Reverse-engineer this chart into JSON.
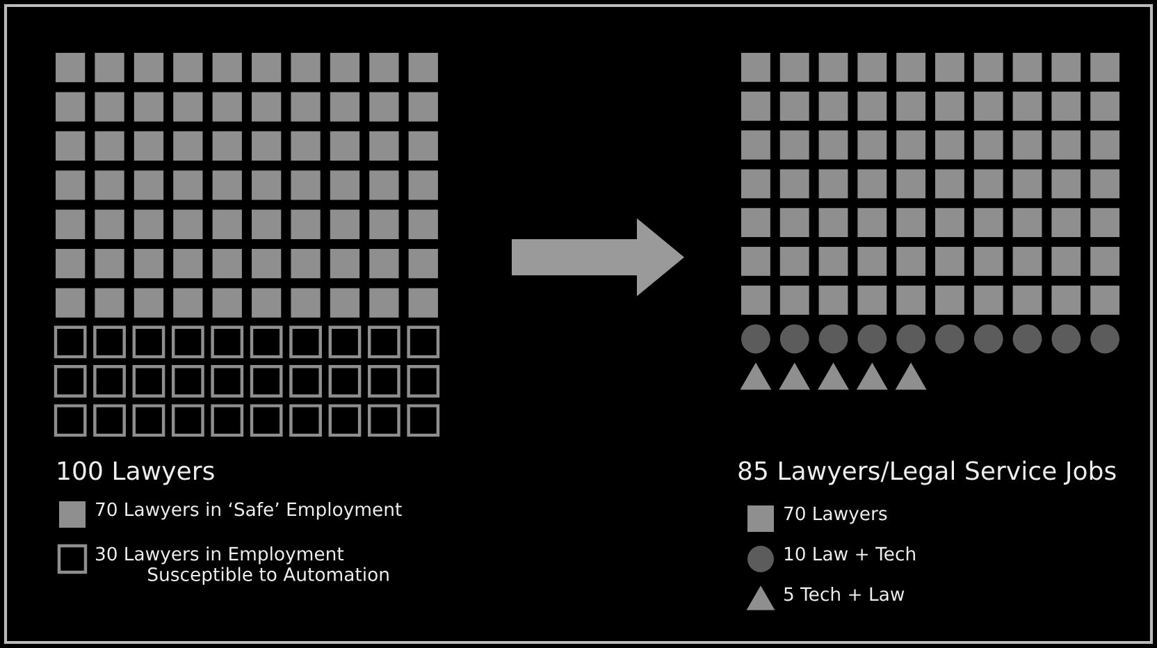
{
  "chart_data": [
    {
      "type": "other",
      "title": "100 Lawyers",
      "series": [
        {
          "name": "Lawyers in ‘Safe’ Employment",
          "values": [
            70
          ],
          "value_labels": [
            "70"
          ],
          "color": "#8f8f8f",
          "marker": "square"
        },
        {
          "name": "Lawyers in Employment\n    Susceptible to Automation",
          "values": [
            30
          ],
          "value_labels": [
            "30"
          ],
          "color": "#000000",
          "marker": "square"
        }
      ]
    },
    {
      "type": "other",
      "title": "85 Lawyers/Legal Service Jobs",
      "series": [
        {
          "name": "Lawyers",
          "values": [
            70
          ],
          "value_labels": [
            "70"
          ],
          "color": "#8f8f8f",
          "marker": "square"
        },
        {
          "name": "Law + Tech",
          "values": [
            10
          ],
          "value_labels": [
            "10"
          ],
          "color": "#5c5c5c",
          "marker": "circle"
        },
        {
          "name": "Tech + Law",
          "values": [
            5
          ],
          "value_labels": [
            "5"
          ],
          "color": "#8f8f8f",
          "marker": "triangle"
        }
      ]
    }
  ]
}
